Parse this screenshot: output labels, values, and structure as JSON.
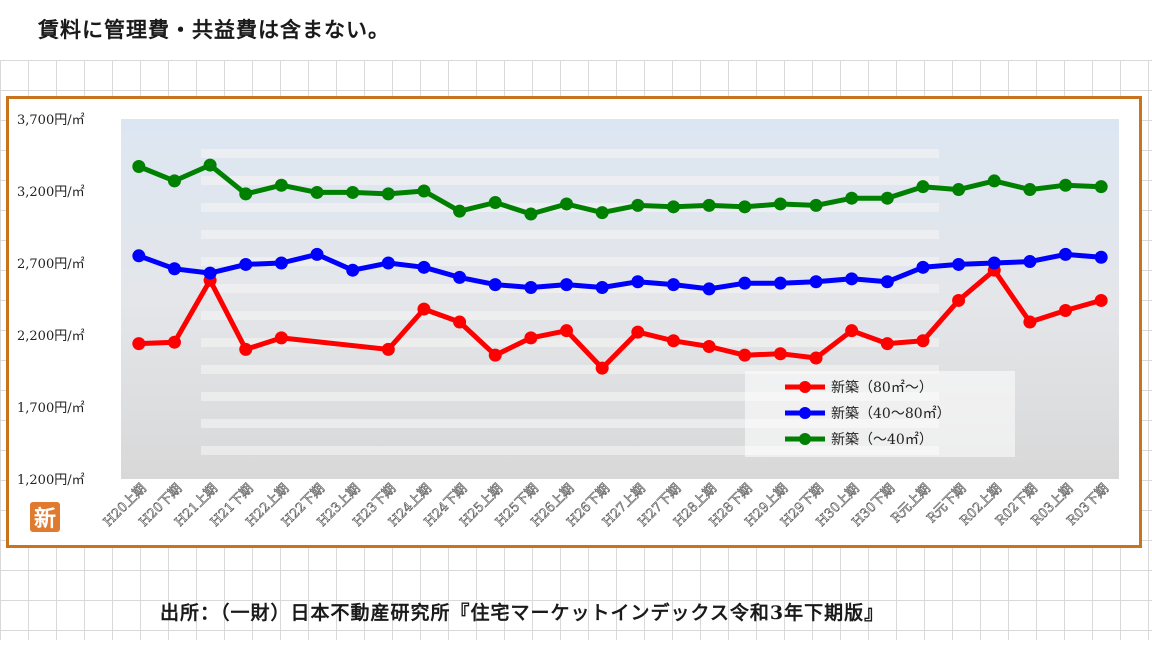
{
  "note": "賃料に管理費・共益費は含まない。",
  "source": "出所：（一財）日本不動産研究所『住宅マーケットインデックス令和3年下期版』",
  "logo_text": "新",
  "colors": {
    "frame": "#c8741c",
    "large": "#ff0000",
    "medium": "#0000ff",
    "small": "#008000"
  },
  "chart_data": {
    "type": "line",
    "title": "",
    "xlabel": "",
    "ylabel": "",
    "ylim": [
      1200,
      3700
    ],
    "yticks": [
      1200,
      1700,
      2200,
      2700,
      3200,
      3700
    ],
    "ytick_labels": [
      "1,200円/㎡",
      "1,700円/㎡",
      "2,200円/㎡",
      "2,700円/㎡",
      "3,200円/㎡",
      "3,700円/㎡"
    ],
    "categories": [
      "H20上期",
      "H20下期",
      "H21上期",
      "H21下期",
      "H22上期",
      "H22下期",
      "H23上期",
      "H23下期",
      "H24上期",
      "H24下期",
      "H25上期",
      "H25下期",
      "H26上期",
      "H26下期",
      "H27上期",
      "H27下期",
      "H28上期",
      "H28下期",
      "H29上期",
      "H29下期",
      "H30上期",
      "H30下期",
      "R元上期",
      "R元下期",
      "R02上期",
      "R02下期",
      "R03上期",
      "R03下期"
    ],
    "series": [
      {
        "name": "新築（80㎡〜）",
        "color": "#ff0000",
        "values": [
          2140,
          2150,
          2580,
          2100,
          2180,
          null,
          null,
          2100,
          2380,
          2290,
          2060,
          2180,
          2230,
          1970,
          2220,
          2160,
          2120,
          2060,
          2070,
          2040,
          2230,
          2140,
          2160,
          2440,
          2650,
          2290,
          2370,
          2440
        ]
      },
      {
        "name": "新築（40〜80㎡）",
        "color": "#0000ff",
        "values": [
          2750,
          2660,
          2630,
          2690,
          2700,
          2760,
          2650,
          2700,
          2670,
          2600,
          2550,
          2530,
          2550,
          2530,
          2570,
          2550,
          2520,
          2560,
          2560,
          2570,
          2590,
          2570,
          2670,
          2690,
          2700,
          2710,
          2760,
          2740
        ]
      },
      {
        "name": "新築（〜40㎡）",
        "color": "#008000",
        "values": [
          3370,
          3270,
          3380,
          3180,
          3240,
          3190,
          3190,
          3180,
          3200,
          3060,
          3120,
          3040,
          3110,
          3050,
          3100,
          3090,
          3100,
          3090,
          3110,
          3100,
          3150,
          3150,
          3230,
          3210,
          3270,
          3210,
          3240,
          3230
        ]
      }
    ],
    "legend_position": "bottom-right"
  }
}
